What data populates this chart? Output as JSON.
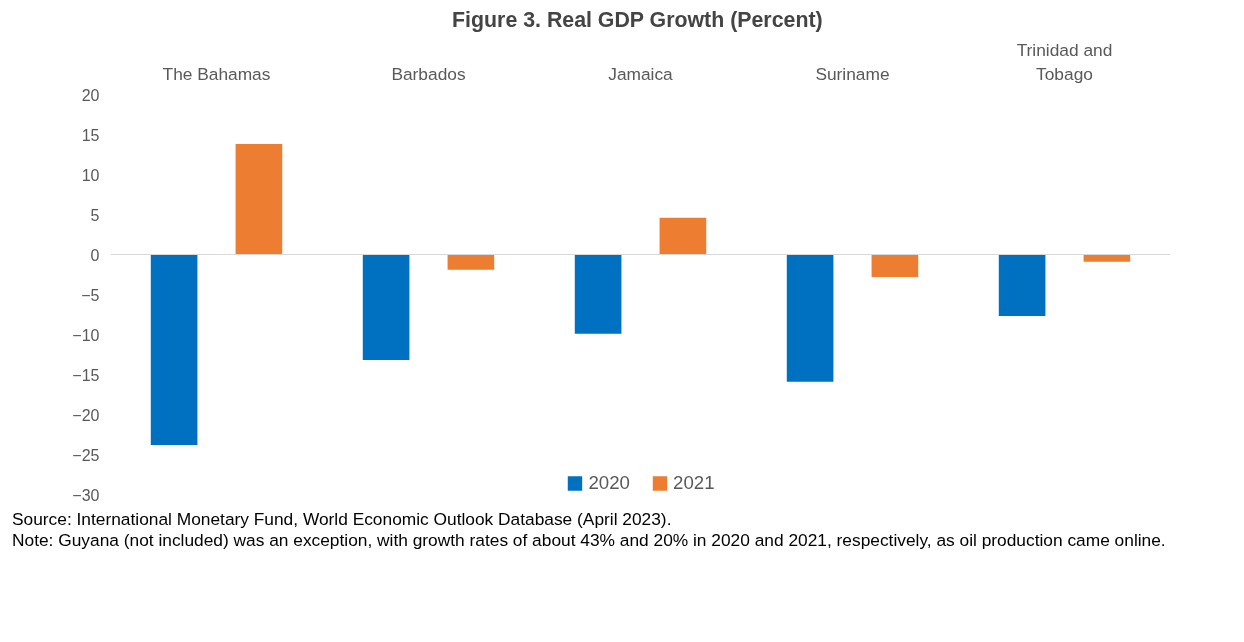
{
  "chart_data": {
    "type": "bar",
    "title": "Figure 3.  Real GDP Growth (Percent)",
    "categories": [
      "The Bahamas",
      "Barbados",
      "Jamaica",
      "Suriname",
      "Trinidad and Tobago"
    ],
    "series": [
      {
        "name": "2020",
        "color": "#0070c0",
        "values": [
          -23.8,
          -13.2,
          -9.9,
          -15.9,
          -7.7
        ]
      },
      {
        "name": "2021",
        "color": "#ed7d31",
        "values": [
          13.8,
          -1.9,
          4.6,
          -2.8,
          -0.9
        ]
      }
    ],
    "ylim": [
      -30,
      20
    ],
    "yticks": [
      -30,
      -25,
      -20,
      -15,
      -10,
      -5,
      0,
      5,
      10,
      15,
      20
    ],
    "grid": false,
    "legend": "bottom",
    "ref_lines": [
      {
        "axis": "y",
        "value": 0,
        "color": "#d9d9d9"
      }
    ],
    "annotations": [
      "Source:  International Monetary Fund, World Economic Outlook Database (April 2023).",
      "Note: Guyana (not included) was an exception, with growth rates of about 43% and 20% in 2020 and 2021, respectively, as oil production came online."
    ]
  }
}
